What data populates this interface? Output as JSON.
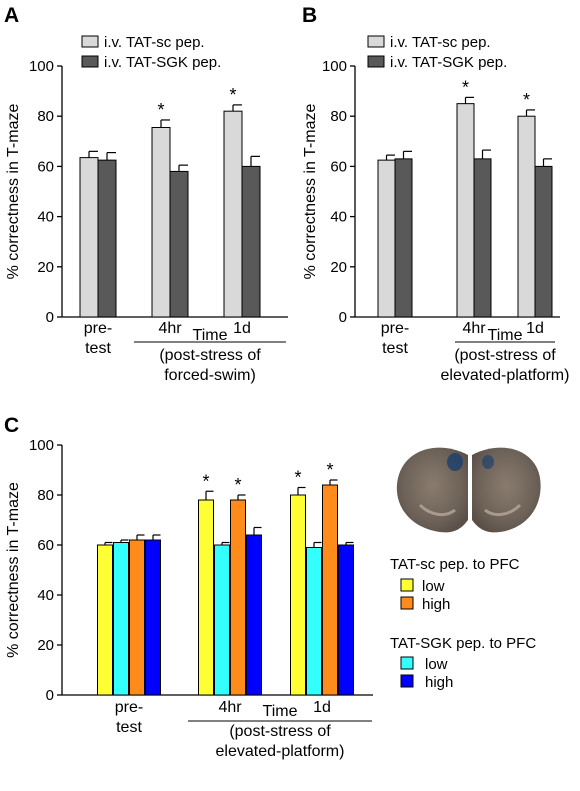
{
  "colors": {
    "sc": "#d9d9d9",
    "sgk": "#595959",
    "sc_low": "#ffff33",
    "sc_high": "#ff8c1a",
    "sgk_low": "#33ffff",
    "sgk_high": "#0000ff",
    "axis": "#000000"
  },
  "image_icon": "brain-slice-image",
  "chart_data": [
    {
      "panel": "A",
      "type": "bar",
      "ylabel": "% correctness in T-maze",
      "ylim": [
        0,
        100
      ],
      "yticks": [
        0,
        20,
        40,
        60,
        80,
        100
      ],
      "categories": [
        "pre-\ntest",
        "4hr",
        "1d"
      ],
      "xlabel_lines": [
        "Time",
        "(post-stress of",
        "forced-swim)"
      ],
      "series": [
        {
          "name": "i.v. TAT-sc pep.",
          "color_key": "sc",
          "values": [
            63.5,
            75.5,
            82
          ],
          "errors": [
            2.5,
            3,
            2.5
          ],
          "sig": [
            false,
            true,
            true
          ]
        },
        {
          "name": "i.v. TAT-SGK pep.",
          "color_key": "sgk",
          "values": [
            62.5,
            58,
            60
          ],
          "errors": [
            3,
            2.5,
            4
          ],
          "sig": [
            false,
            false,
            false
          ]
        }
      ]
    },
    {
      "panel": "B",
      "type": "bar",
      "ylabel": "% correctness in T-maze",
      "ylim": [
        0,
        100
      ],
      "yticks": [
        0,
        20,
        40,
        60,
        80,
        100
      ],
      "categories": [
        "pre-\ntest",
        "4hr",
        "1d"
      ],
      "xlabel_lines": [
        "Time",
        "(post-stress of",
        "elevated-platform)"
      ],
      "series": [
        {
          "name": "i.v. TAT-sc pep.",
          "color_key": "sc",
          "values": [
            62.5,
            85,
            80
          ],
          "errors": [
            2,
            2.5,
            2.5
          ],
          "sig": [
            false,
            true,
            true
          ]
        },
        {
          "name": "i.v. TAT-SGK pep.",
          "color_key": "sgk",
          "values": [
            63,
            63,
            60
          ],
          "errors": [
            3,
            3.5,
            3
          ],
          "sig": [
            false,
            false,
            false
          ]
        }
      ]
    },
    {
      "panel": "C",
      "type": "bar",
      "ylabel": "% correctness in T-maze",
      "ylim": [
        0,
        100
      ],
      "yticks": [
        0,
        20,
        40,
        60,
        80,
        100
      ],
      "categories": [
        "pre-\ntest",
        "4hr",
        "1d"
      ],
      "xlabel_lines": [
        "Time",
        "(post-stress of",
        "elevated-platform)"
      ],
      "legend_groups": [
        {
          "title": "TAT-sc pep. to PFC",
          "items": [
            {
              "label": "low",
              "color_key": "sc_low"
            },
            {
              "label": "high",
              "color_key": "sc_high"
            }
          ]
        },
        {
          "title": "TAT-SGK pep. to PFC",
          "items": [
            {
              "label": "low",
              "color_key": "sgk_low"
            },
            {
              "label": "high",
              "color_key": "sgk_high"
            }
          ]
        }
      ],
      "series": [
        {
          "name": "TAT-sc pep. to PFC low",
          "color_key": "sc_low",
          "values": [
            60,
            78,
            80
          ],
          "errors": [
            1,
            3.5,
            3
          ],
          "sig": [
            false,
            true,
            true
          ]
        },
        {
          "name": "TAT-SGK pep. to PFC low",
          "color_key": "sgk_low",
          "values": [
            61,
            60,
            59
          ],
          "errors": [
            1,
            1,
            2
          ],
          "sig": [
            false,
            false,
            false
          ]
        },
        {
          "name": "TAT-sc pep. to PFC high",
          "color_key": "sc_high",
          "values": [
            62,
            78,
            84
          ],
          "errors": [
            2,
            2,
            2
          ],
          "sig": [
            false,
            true,
            true
          ]
        },
        {
          "name": "TAT-SGK pep. to PFC high",
          "color_key": "sgk_high",
          "values": [
            62,
            64,
            60
          ],
          "errors": [
            2,
            3,
            1
          ],
          "sig": [
            false,
            false,
            false
          ]
        }
      ]
    }
  ]
}
